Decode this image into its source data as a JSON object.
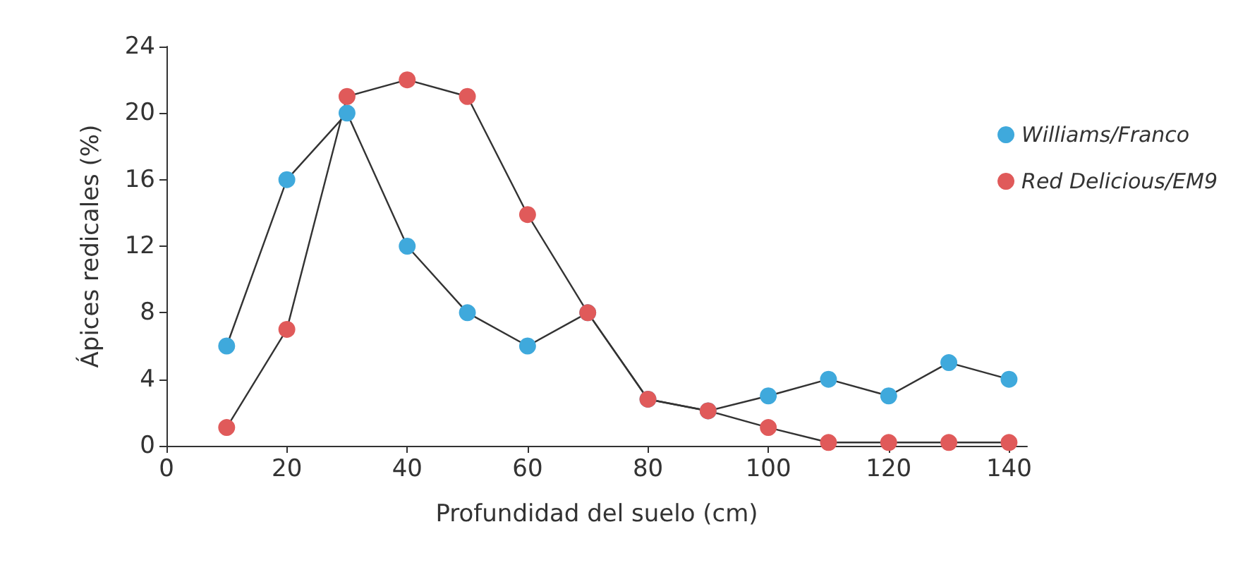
{
  "chart_data": {
    "type": "line",
    "xlabel": "Profundidad del suelo (cm)",
    "ylabel": "Ápices redicales (%)",
    "x": [
      10,
      20,
      30,
      40,
      50,
      60,
      70,
      80,
      90,
      100,
      110,
      120,
      130,
      140
    ],
    "series": [
      {
        "name": "Williams/Franco",
        "color": "#3fa9dc",
        "values": [
          6,
          16,
          20,
          12,
          8,
          6,
          8,
          2.8,
          2.1,
          3,
          4,
          3,
          5,
          4
        ]
      },
      {
        "name": "Red Delicious/EM9",
        "color": "#e05a5a",
        "values": [
          1.1,
          7,
          21,
          22,
          21,
          13.9,
          8,
          2.8,
          2.1,
          1.1,
          0.2,
          0.2,
          0.2,
          0.2
        ]
      }
    ],
    "xlim": [
      0,
      143
    ],
    "xticks": [
      0,
      20,
      40,
      60,
      80,
      100,
      120,
      140
    ],
    "ylim": [
      0,
      24
    ],
    "yticks": [
      0,
      4,
      8,
      12,
      16,
      20,
      24
    ],
    "grid": false,
    "legend": "right",
    "marker": "circle",
    "line_style": "solid"
  }
}
